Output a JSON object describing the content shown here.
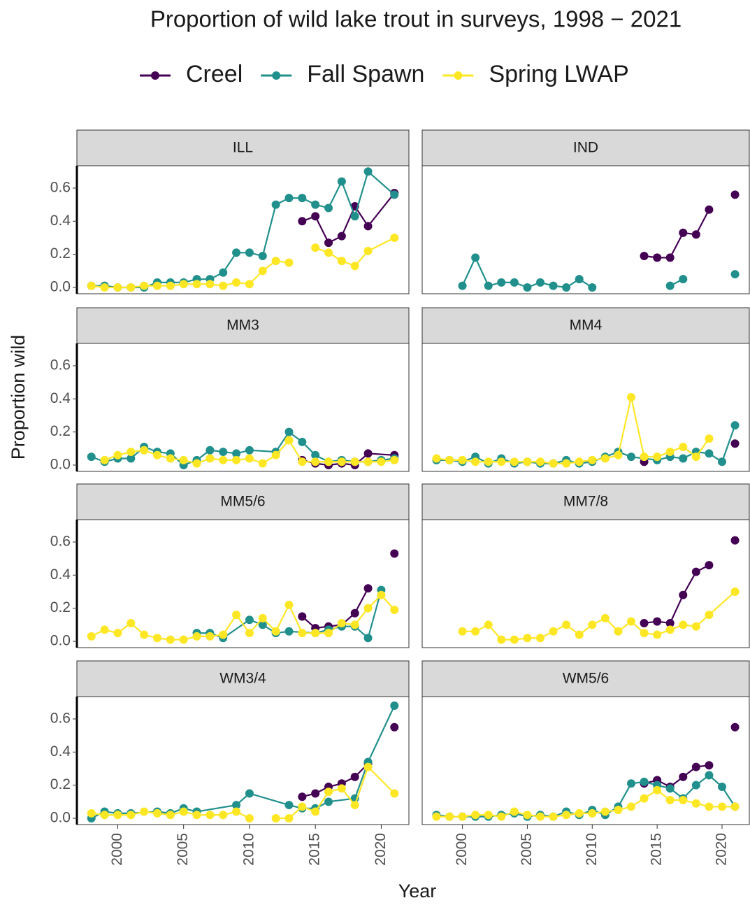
{
  "chart_data": {
    "type": "line",
    "title": "Proportion of wild lake trout in surveys, 1998 − 2021",
    "xlabel": "Year",
    "ylabel": "Proportion wild",
    "xlim": [
      1996.9,
      2022.1
    ],
    "ylim": [
      -0.038,
      0.735
    ],
    "xticks": [
      2000,
      2005,
      2010,
      2015,
      2020
    ],
    "yticks": [
      {
        "value": 0,
        "label": "0.0"
      },
      0.2,
      0.4,
      0.6
    ],
    "series": [
      {
        "name": "Creel",
        "color": "#440154"
      },
      {
        "name": "Fall Spawn",
        "color": "#21908C"
      },
      {
        "name": "Spring LWAP",
        "color": "#FDE725"
      }
    ],
    "panels": [
      {
        "title": "ILL",
        "series": [
          {
            "x": [
              2014,
              2015,
              2016,
              2017,
              2018,
              2019,
              2021
            ],
            "values": [
              0.4,
              0.43,
              0.27,
              0.31,
              0.49,
              0.37,
              0.57
            ]
          },
          {
            "x": [
              1998,
              1999,
              2000,
              2001,
              2002,
              2003,
              2004,
              2005,
              2006,
              2007,
              2008,
              2009,
              2010,
              2011,
              2012,
              2013,
              2014,
              2015,
              2016,
              2017,
              2018,
              2019,
              2021
            ],
            "values": [
              0.01,
              0.01,
              0.0,
              0.0,
              0.0,
              0.03,
              0.03,
              0.03,
              0.05,
              0.05,
              0.09,
              0.21,
              0.21,
              0.19,
              0.5,
              0.54,
              0.54,
              0.5,
              0.48,
              0.64,
              0.43,
              0.7,
              0.56
            ]
          },
          {
            "x": [
              1998,
              1999,
              2000,
              2001,
              2002,
              2003,
              2004,
              2005,
              2006,
              2007,
              2008,
              2009,
              2010,
              2011,
              2012,
              2013,
              2014,
              2015,
              2016,
              2017,
              2018,
              2019,
              2021
            ],
            "values": [
              0.01,
              0.0,
              0.0,
              0.0,
              0.01,
              0.01,
              0.01,
              0.02,
              0.02,
              0.02,
              0.01,
              0.03,
              0.02,
              0.1,
              0.16,
              0.15,
              null,
              0.24,
              0.21,
              0.16,
              0.13,
              0.22,
              0.3
            ]
          }
        ]
      },
      {
        "title": "IND",
        "series": [
          {
            "x": [
              2014,
              2015,
              2016,
              2017,
              2018,
              2019,
              2020,
              2021
            ],
            "values": [
              0.19,
              0.18,
              0.18,
              0.33,
              0.32,
              0.47,
              null,
              0.56
            ]
          },
          {
            "x": [
              2000,
              2001,
              2002,
              2003,
              2004,
              2005,
              2006,
              2007,
              2008,
              2009,
              2010,
              2011,
              2016,
              2017,
              2018,
              2021
            ],
            "values": [
              0.01,
              0.18,
              0.01,
              0.03,
              0.03,
              0.0,
              0.03,
              0.01,
              0.0,
              0.05,
              0.0,
              null,
              0.01,
              0.05,
              null,
              0.08
            ]
          },
          {
            "x": [],
            "values": []
          }
        ]
      },
      {
        "title": "MM3",
        "series": [
          {
            "x": [
              2014,
              2015,
              2016,
              2017,
              2018,
              2019,
              2021
            ],
            "values": [
              0.03,
              0.01,
              0.0,
              0.01,
              0.0,
              0.07,
              0.06
            ]
          },
          {
            "x": [
              1998,
              1999,
              2000,
              2001,
              2002,
              2003,
              2004,
              2005,
              2006,
              2007,
              2008,
              2009,
              2010,
              2012,
              2013,
              2014,
              2015,
              2016,
              2017,
              2018,
              2019,
              2020,
              2021
            ],
            "values": [
              0.05,
              0.02,
              0.04,
              0.04,
              0.11,
              0.08,
              0.07,
              0.0,
              0.03,
              0.09,
              0.08,
              0.07,
              0.09,
              0.08,
              0.2,
              0.14,
              0.06,
              0.02,
              0.03,
              0.02,
              0.02,
              0.03,
              0.04
            ]
          },
          {
            "x": [
              1999,
              2000,
              2001,
              2002,
              2003,
              2004,
              2005,
              2006,
              2007,
              2008,
              2009,
              2010,
              2011,
              2012,
              2013,
              2014,
              2015,
              2016,
              2017,
              2018,
              2019,
              2020,
              2021
            ],
            "values": [
              0.03,
              0.06,
              0.08,
              0.09,
              0.06,
              0.04,
              0.03,
              0.01,
              0.04,
              0.03,
              0.03,
              0.04,
              0.01,
              0.06,
              0.15,
              0.02,
              0.02,
              0.02,
              0.02,
              0.02,
              0.02,
              0.02,
              0.03
            ]
          }
        ]
      },
      {
        "title": "MM4",
        "series": [
          {
            "x": [
              2014,
              2015,
              2021
            ],
            "values": [
              0.02,
              null,
              0.13
            ]
          },
          {
            "x": [
              1998,
              1999,
              2000,
              2001,
              2002,
              2003,
              2004,
              2005,
              2006,
              2007,
              2008,
              2009,
              2010,
              2011,
              2012,
              2013,
              2015,
              2016,
              2017,
              2018,
              2019,
              2020,
              2021
            ],
            "values": [
              0.03,
              0.03,
              0.02,
              0.05,
              0.01,
              0.04,
              0.01,
              0.02,
              0.01,
              0.01,
              0.03,
              0.01,
              0.02,
              0.05,
              0.08,
              0.05,
              0.03,
              0.05,
              0.04,
              0.08,
              0.07,
              0.02,
              0.24
            ]
          },
          {
            "x": [
              1998,
              1999,
              2000,
              2001,
              2002,
              2003,
              2004,
              2005,
              2006,
              2007,
              2008,
              2009,
              2010,
              2011,
              2012,
              2013,
              2014,
              2015,
              2016,
              2017,
              2018,
              2019
            ],
            "values": [
              0.04,
              0.03,
              0.03,
              0.02,
              0.02,
              0.02,
              0.02,
              0.02,
              0.02,
              0.01,
              0.01,
              0.02,
              0.03,
              0.04,
              0.06,
              0.41,
              0.05,
              0.05,
              0.08,
              0.11,
              0.05,
              0.16
            ]
          }
        ]
      },
      {
        "title": "MM5/6",
        "series": [
          {
            "x": [
              2014,
              2015,
              2016,
              2017,
              2018,
              2019,
              2020,
              2021
            ],
            "values": [
              0.15,
              0.08,
              0.09,
              0.1,
              0.17,
              0.32,
              null,
              0.53
            ]
          },
          {
            "x": [
              2006,
              2007,
              2008,
              2010,
              2011,
              2012,
              2013,
              2015,
              2016,
              2017,
              2018,
              2019,
              2020
            ],
            "values": [
              0.05,
              0.05,
              0.02,
              0.13,
              0.1,
              0.05,
              0.06,
              0.05,
              0.07,
              0.09,
              0.09,
              0.02,
              0.31
            ]
          },
          {
            "x": [
              1998,
              1999,
              2000,
              2001,
              2002,
              2003,
              2004,
              2005,
              2006,
              2007,
              2008,
              2009,
              2010,
              2011,
              2012,
              2013,
              2014,
              2015,
              2016,
              2017,
              2018,
              2019,
              2020,
              2021
            ],
            "values": [
              0.03,
              0.07,
              0.05,
              0.11,
              0.04,
              0.02,
              0.01,
              0.01,
              0.03,
              0.03,
              0.04,
              0.16,
              0.05,
              0.14,
              0.06,
              0.22,
              0.05,
              0.05,
              0.05,
              0.11,
              0.1,
              0.2,
              0.28,
              0.19
            ]
          }
        ]
      },
      {
        "title": "MM7/8",
        "series": [
          {
            "x": [
              2014,
              2015,
              2016,
              2017,
              2018,
              2019,
              2020,
              2021
            ],
            "values": [
              0.11,
              0.12,
              0.11,
              0.28,
              0.42,
              0.46,
              null,
              0.61
            ]
          },
          {
            "x": [],
            "values": []
          },
          {
            "x": [
              2000,
              2001,
              2002,
              2003,
              2004,
              2005,
              2006,
              2007,
              2008,
              2009,
              2010,
              2011,
              2012,
              2013,
              2014,
              2015,
              2016,
              2017,
              2018,
              2019,
              2021
            ],
            "values": [
              0.06,
              0.06,
              0.1,
              0.01,
              0.01,
              0.02,
              0.02,
              0.06,
              0.1,
              0.04,
              0.1,
              0.14,
              0.06,
              0.12,
              0.05,
              0.04,
              0.07,
              0.1,
              0.09,
              0.16,
              0.3
            ]
          }
        ]
      },
      {
        "title": "WM3/4",
        "series": [
          {
            "x": [
              2014,
              2015,
              2016,
              2017,
              2018,
              2019,
              2020,
              2021
            ],
            "values": [
              0.13,
              0.15,
              0.19,
              0.21,
              0.25,
              0.33,
              null,
              0.55
            ]
          },
          {
            "x": [
              1998,
              1999,
              2000,
              2001,
              2003,
              2004,
              2005,
              2006,
              2009,
              2010,
              2013,
              2014,
              2015,
              2016,
              2018,
              2019,
              2021
            ],
            "values": [
              0.0,
              0.04,
              0.03,
              0.03,
              0.04,
              0.03,
              0.06,
              0.04,
              0.08,
              0.15,
              0.08,
              0.06,
              0.06,
              0.1,
              0.12,
              0.34,
              0.68
            ]
          },
          {
            "x": [
              1998,
              1999,
              2000,
              2001,
              2002,
              2003,
              2004,
              2005,
              2006,
              2007,
              2008,
              2009,
              2010,
              2011,
              2012,
              2013,
              2014,
              2015,
              2016,
              2017,
              2018,
              2019,
              2021
            ],
            "values": [
              0.03,
              0.02,
              0.02,
              0.02,
              0.04,
              0.03,
              0.02,
              0.04,
              0.02,
              0.02,
              0.02,
              0.04,
              0.0,
              null,
              0.0,
              0.0,
              0.07,
              0.04,
              0.16,
              0.18,
              0.08,
              0.31,
              0.15
            ]
          }
        ]
      },
      {
        "title": "WM5/6",
        "series": [
          {
            "x": [
              2014,
              2015,
              2016,
              2017,
              2018,
              2019,
              2020,
              2021
            ],
            "values": [
              0.21,
              0.23,
              0.19,
              0.25,
              0.31,
              0.32,
              null,
              0.55
            ]
          },
          {
            "x": [
              1998,
              1999,
              2000,
              2001,
              2002,
              2003,
              2004,
              2005,
              2006,
              2007,
              2008,
              2009,
              2010,
              2011,
              2012,
              2013,
              2014,
              2015,
              2016,
              2017,
              2018,
              2019,
              2020,
              2021
            ],
            "values": [
              0.02,
              0.01,
              0.01,
              0.01,
              0.01,
              0.02,
              0.03,
              0.01,
              0.02,
              0.01,
              0.04,
              0.02,
              0.05,
              0.02,
              0.07,
              0.21,
              0.22,
              0.2,
              0.18,
              0.12,
              0.2,
              0.26,
              0.19,
              0.07
            ]
          },
          {
            "x": [
              1998,
              1999,
              2000,
              2001,
              2002,
              2003,
              2004,
              2005,
              2006,
              2007,
              2008,
              2009,
              2010,
              2011,
              2012,
              2013,
              2014,
              2015,
              2016,
              2017,
              2018,
              2019,
              2020,
              2021
            ],
            "values": [
              0.01,
              0.01,
              0.01,
              0.02,
              0.02,
              0.01,
              0.04,
              0.02,
              0.01,
              0.01,
              0.02,
              0.03,
              0.03,
              0.04,
              0.05,
              0.07,
              0.12,
              0.17,
              0.11,
              0.11,
              0.09,
              0.07,
              0.07,
              0.07
            ]
          }
        ]
      }
    ]
  }
}
